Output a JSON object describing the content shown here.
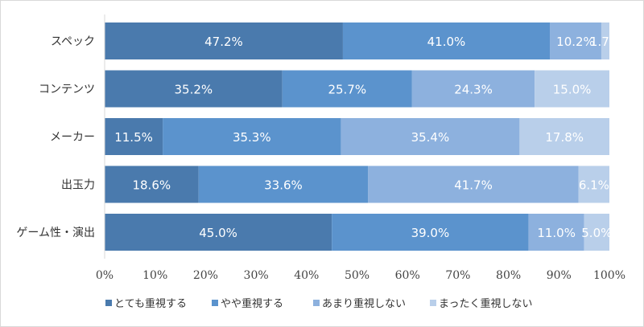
{
  "chart_data": {
    "type": "bar",
    "orientation": "horizontal",
    "stacked": true,
    "categories": [
      "スペック",
      "コンテンツ",
      "メーカー",
      "出玉力",
      "ゲーム性・演出"
    ],
    "series": [
      {
        "name": "とても重視する",
        "color": "#4a7aad",
        "values": [
          47.2,
          35.2,
          11.5,
          18.6,
          45.0
        ],
        "labels": [
          "47.2%",
          "35.2%",
          "11.5%",
          "18.6%",
          "45.0%"
        ]
      },
      {
        "name": "やや重視する",
        "color": "#5b93cd",
        "values": [
          41.0,
          25.7,
          35.3,
          33.6,
          39.0
        ],
        "labels": [
          "41.0%",
          "25.7%",
          "35.3%",
          "33.6%",
          "39.0%"
        ]
      },
      {
        "name": "あまり重視しない",
        "color": "#8db1de",
        "values": [
          10.2,
          24.3,
          35.4,
          41.7,
          11.0
        ],
        "labels": [
          "10.2%",
          "24.3%",
          "35.4%",
          "41.7%",
          "11.0%"
        ]
      },
      {
        "name": "まったく重視しない",
        "color": "#b9cfea",
        "values": [
          1.7,
          15.0,
          17.8,
          6.1,
          5.0
        ],
        "labels": [
          "1.7%",
          "15.0%",
          "17.8%",
          "6.1%",
          "5.0%"
        ]
      }
    ],
    "xlim": [
      0,
      100
    ],
    "xticks": [
      "0%",
      "10%",
      "20%",
      "30%",
      "40%",
      "50%",
      "60%",
      "70%",
      "80%",
      "90%",
      "100%"
    ],
    "grid": false,
    "legend": "bottom",
    "colors": {
      "axis": "#d9d9d9",
      "background": "#ffffff",
      "label_text": "#ffffff"
    }
  }
}
